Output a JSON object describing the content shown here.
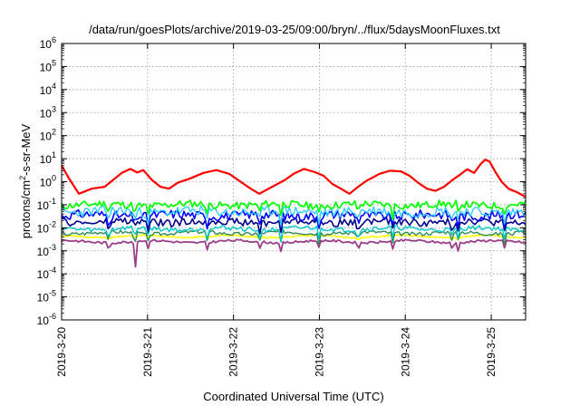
{
  "chart_data": {
    "type": "line",
    "title": "/data/run/goesPlots/archive/2019-03-25/09:00/bryn/../flux/5daysMoonFluxes.txt",
    "xlabel": "Coordinated Universal Time (UTC)",
    "ylabel": {
      "prefix": "protons/cm",
      "exponent": "2",
      "suffix": "-s-sr-MeV"
    },
    "y_scale": "log",
    "ylim": [
      1e-06,
      1000000.0
    ],
    "y_ticks": [
      {
        "base": "10",
        "exp": "-6",
        "value": -6
      },
      {
        "base": "10",
        "exp": "-5",
        "value": -5
      },
      {
        "base": "10",
        "exp": "-4",
        "value": -4
      },
      {
        "base": "10",
        "exp": "-3",
        "value": -3
      },
      {
        "base": "10",
        "exp": "-2",
        "value": -2
      },
      {
        "base": "10",
        "exp": "-1",
        "value": -1
      },
      {
        "base": "10",
        "exp": "0",
        "value": 0
      },
      {
        "base": "10",
        "exp": "1",
        "value": 1
      },
      {
        "base": "10",
        "exp": "2",
        "value": 2
      },
      {
        "base": "10",
        "exp": "3",
        "value": 3
      },
      {
        "base": "10",
        "exp": "4",
        "value": 4
      },
      {
        "base": "10",
        "exp": "5",
        "value": 5
      },
      {
        "base": "10",
        "exp": "6",
        "value": 6
      }
    ],
    "x_ticks": [
      {
        "label": "2019-3-20",
        "day": 0
      },
      {
        "label": "2019-3-21",
        "day": 1
      },
      {
        "label": "2019-3-22",
        "day": 2
      },
      {
        "label": "2019-3-23",
        "day": 3
      },
      {
        "label": "2019-3-24",
        "day": 4
      },
      {
        "label": "2019-3-25",
        "day": 5
      }
    ],
    "x_range_days": [
      0,
      5.4
    ],
    "grid": true,
    "series": [
      {
        "color": "#ff0000",
        "width": 2.2,
        "kind": "red",
        "points": [
          [
            0,
            5
          ],
          [
            0.08,
            1.5
          ],
          [
            0.2,
            0.3
          ],
          [
            0.35,
            0.5
          ],
          [
            0.5,
            0.6
          ],
          [
            0.6,
            1.2
          ],
          [
            0.7,
            2.4
          ],
          [
            0.8,
            3.6
          ],
          [
            0.88,
            2.5
          ],
          [
            0.95,
            3.2
          ],
          [
            1.05,
            1.2
          ],
          [
            1.15,
            0.6
          ],
          [
            1.25,
            0.5
          ],
          [
            1.35,
            0.9
          ],
          [
            1.5,
            1.4
          ],
          [
            1.65,
            2.4
          ],
          [
            1.8,
            3.2
          ],
          [
            1.95,
            2.2
          ],
          [
            2.1,
            0.9
          ],
          [
            2.2,
            0.5
          ],
          [
            2.3,
            0.3
          ],
          [
            2.45,
            0.6
          ],
          [
            2.6,
            1.2
          ],
          [
            2.7,
            2.2
          ],
          [
            2.82,
            3.6
          ],
          [
            2.95,
            2.6
          ],
          [
            3.05,
            1.8
          ],
          [
            3.15,
            0.8
          ],
          [
            3.25,
            0.5
          ],
          [
            3.35,
            0.3
          ],
          [
            3.45,
            0.6
          ],
          [
            3.55,
            1.1
          ],
          [
            3.7,
            2.2
          ],
          [
            3.82,
            3.0
          ],
          [
            3.95,
            2.8
          ],
          [
            4.05,
            1.8
          ],
          [
            4.15,
            0.9
          ],
          [
            4.25,
            0.5
          ],
          [
            4.35,
            0.4
          ],
          [
            4.45,
            0.6
          ],
          [
            4.55,
            1.2
          ],
          [
            4.65,
            2.2
          ],
          [
            4.72,
            3.5
          ],
          [
            4.8,
            2.4
          ],
          [
            4.88,
            6.0
          ],
          [
            4.93,
            9.0
          ],
          [
            4.98,
            7.5
          ],
          [
            5.05,
            2.6
          ],
          [
            5.12,
            1.0
          ],
          [
            5.2,
            0.5
          ],
          [
            5.3,
            0.35
          ],
          [
            5.4,
            0.22
          ]
        ]
      },
      {
        "color": "#00ff00",
        "width": 1.7,
        "kind": "green",
        "base": 0.1,
        "amp": 0.16,
        "seed": 11
      },
      {
        "color": "#33ccff",
        "width": 1.4,
        "kind": "lightblue",
        "base": 0.05,
        "amp": 0.22,
        "seed": 23
      },
      {
        "color": "#0000ff",
        "width": 1.6,
        "kind": "blue",
        "base": 0.035,
        "amp": 0.2,
        "seed": 31
      },
      {
        "color": "#00008b",
        "width": 1.6,
        "kind": "navy",
        "base": 0.018,
        "amp": 0.16,
        "seed": 47
      },
      {
        "color": "#00c8c8",
        "width": 1.4,
        "kind": "teal",
        "base": 0.009,
        "amp": 0.1,
        "seed": 59
      },
      {
        "color": "#2e8b57",
        "width": 1.4,
        "kind": "seagreen",
        "base": 0.006,
        "amp": 0.08,
        "seed": 67
      },
      {
        "color": "#ffff00",
        "width": 1.6,
        "kind": "yellow",
        "base": 0.0042,
        "amp": 0.03,
        "seed": 71
      },
      {
        "color": "#9b3d8b",
        "width": 1.8,
        "kind": "purple",
        "base": 0.0025,
        "amp": 0.05,
        "seed": 83
      }
    ],
    "dips_days": [
      0.55,
      0.85,
      1.0,
      1.7,
      2.3,
      2.55,
      3.0,
      3.45,
      3.85,
      4.55,
      4.62,
      5.15
    ]
  }
}
